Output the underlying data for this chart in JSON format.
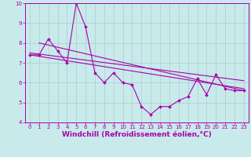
{
  "xlabel": "Windchill (Refroidissement éolien,°C)",
  "background_color": "#c8eaeb",
  "line_color": "#aa00aa",
  "grid_color": "#aacccc",
  "xlim": [
    -0.5,
    23.5
  ],
  "ylim": [
    4,
    10
  ],
  "xticks": [
    0,
    1,
    2,
    3,
    4,
    5,
    6,
    7,
    8,
    9,
    10,
    11,
    12,
    13,
    14,
    15,
    16,
    17,
    18,
    19,
    20,
    21,
    22,
    23
  ],
  "yticks": [
    4,
    5,
    6,
    7,
    8,
    9,
    10
  ],
  "x_data": [
    0,
    1,
    2,
    3,
    4,
    5,
    6,
    7,
    8,
    9,
    10,
    11,
    12,
    13,
    14,
    15,
    16,
    17,
    18,
    19,
    20,
    21,
    22,
    23
  ],
  "y_main": [
    7.4,
    7.4,
    8.2,
    7.6,
    7.0,
    10.0,
    8.8,
    6.5,
    6.0,
    6.5,
    6.0,
    5.9,
    4.8,
    4.4,
    4.8,
    4.8,
    5.1,
    5.3,
    6.2,
    5.4,
    6.4,
    5.7,
    5.6,
    5.6
  ],
  "trend1_x": [
    0,
    23
  ],
  "trend1_y": [
    7.5,
    6.1
  ],
  "trend2_x": [
    0,
    23
  ],
  "trend2_y": [
    7.4,
    5.7
  ],
  "trend3_x": [
    1,
    23
  ],
  "trend3_y": [
    8.0,
    5.6
  ],
  "tick_fontsize": 5.0,
  "xlabel_fontsize": 6.5
}
